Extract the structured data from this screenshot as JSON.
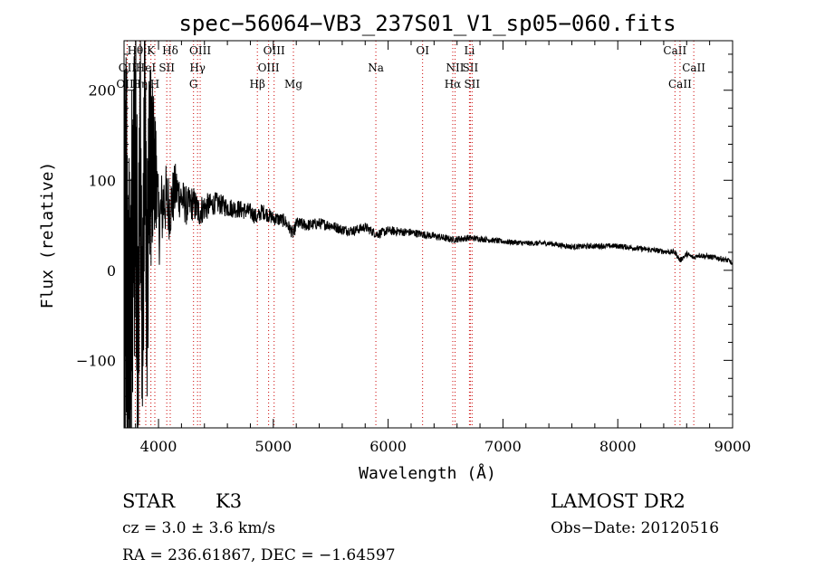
{
  "chart_data": {
    "type": "line",
    "title": "spec−56064−VB3_237S01_V1_sp05−060.fits",
    "xlabel": "Wavelength (Å)",
    "ylabel": "Flux (relative)",
    "xlim": [
      3700,
      9000
    ],
    "ylim": [
      -175,
      255
    ],
    "xticks": [
      4000,
      5000,
      6000,
      7000,
      8000,
      9000
    ],
    "xtick_labels": [
      "4000",
      "5000",
      "6000",
      "7000",
      "8000",
      "9000"
    ],
    "yticks": [
      -100,
      0,
      100,
      200
    ],
    "ytick_labels": [
      "−100",
      "0",
      "100",
      "200"
    ],
    "grid": false,
    "line_color": "#000000",
    "marker_color": "#cc0000",
    "spectrum": {
      "x": [
        3700,
        3720,
        3750,
        3780,
        3800,
        3820,
        3840,
        3860,
        3880,
        3900,
        3920,
        3950,
        3980,
        4000,
        4050,
        4100,
        4150,
        4200,
        4250,
        4300,
        4350,
        4400,
        4450,
        4500,
        4600,
        4700,
        4800,
        4861,
        4900,
        5000,
        5100,
        5175,
        5200,
        5300,
        5400,
        5500,
        5600,
        5700,
        5800,
        5900,
        6000,
        6200,
        6400,
        6563,
        6700,
        6800,
        7000,
        7200,
        7400,
        7600,
        7800,
        8000,
        8200,
        8400,
        8500,
        8542,
        8600,
        8662,
        8700,
        8800,
        8900,
        8980,
        9000
      ],
      "y": [
        -40,
        30,
        -100,
        80,
        130,
        -80,
        150,
        -60,
        170,
        -40,
        130,
        110,
        90,
        50,
        80,
        70,
        90,
        80,
        70,
        75,
        65,
        70,
        72,
        75,
        70,
        68,
        65,
        58,
        66,
        58,
        55,
        40,
        52,
        50,
        52,
        50,
        45,
        44,
        48,
        40,
        44,
        42,
        38,
        34,
        36,
        35,
        32,
        30,
        30,
        26,
        27,
        27,
        24,
        21,
        20,
        11,
        18,
        14,
        17,
        15,
        13,
        10,
        5
      ]
    },
    "noise": {
      "x": [
        3700,
        3800,
        3900,
        4000,
        4200,
        4500,
        5000,
        5500,
        6000,
        7000,
        8000,
        9000
      ],
      "amplitude": [
        240,
        200,
        150,
        50,
        24,
        12,
        8,
        6,
        5,
        3,
        3,
        3
      ]
    },
    "line_markers": [
      {
        "label": "Hθ",
        "wavelength": 3798,
        "row": 0
      },
      {
        "label": "OII",
        "wavelength": 3727,
        "row": 1
      },
      {
        "label": "OIII",
        "wavelength": 3727,
        "row": 2
      },
      {
        "label": "Hη",
        "wavelength": 3836,
        "row": 2
      },
      {
        "label": "HeI",
        "wavelength": 3889,
        "row": 1
      },
      {
        "label": "K",
        "wavelength": 3934,
        "row": 0
      },
      {
        "label": "H",
        "wavelength": 3968,
        "row": 2
      },
      {
        "label": "SII",
        "wavelength": 4072,
        "row": 1
      },
      {
        "label": "Hδ",
        "wavelength": 4102,
        "row": 0
      },
      {
        "label": "OIII",
        "wavelength": 4363,
        "row": 0
      },
      {
        "label": "Hγ",
        "wavelength": 4340,
        "row": 1
      },
      {
        "label": "G",
        "wavelength": 4305,
        "row": 2
      },
      {
        "label": "Hβ",
        "wavelength": 4861,
        "row": 2
      },
      {
        "label": "OIII",
        "wavelength": 4959,
        "row": 1
      },
      {
        "label": "OIII",
        "wavelength": 5007,
        "row": 0
      },
      {
        "label": "Mg",
        "wavelength": 5175,
        "row": 2
      },
      {
        "label": "Na",
        "wavelength": 5893,
        "row": 1
      },
      {
        "label": "OI",
        "wavelength": 6300,
        "row": 0
      },
      {
        "label": "NII",
        "wavelength": 6583,
        "row": 1
      },
      {
        "label": "Hα",
        "wavelength": 6563,
        "row": 2
      },
      {
        "label": "Li",
        "wavelength": 6708,
        "row": 0
      },
      {
        "label": "SII",
        "wavelength": 6716,
        "row": 1
      },
      {
        "label": "SII",
        "wavelength": 6731,
        "row": 2
      },
      {
        "label": "CaII",
        "wavelength": 8498,
        "row": 0
      },
      {
        "label": "CaII",
        "wavelength": 8542,
        "row": 2
      },
      {
        "label": "CaII",
        "wavelength": 8662,
        "row": 1
      }
    ]
  },
  "info": {
    "object_class": "STAR",
    "subclass": "K3",
    "survey": "LAMOST DR2",
    "cz": "cz = 3.0 ± 3.6 km/s",
    "obs_date": "Obs−Date: 20120516",
    "coords": "RA = 236.61867, DEC =  −1.64597"
  }
}
